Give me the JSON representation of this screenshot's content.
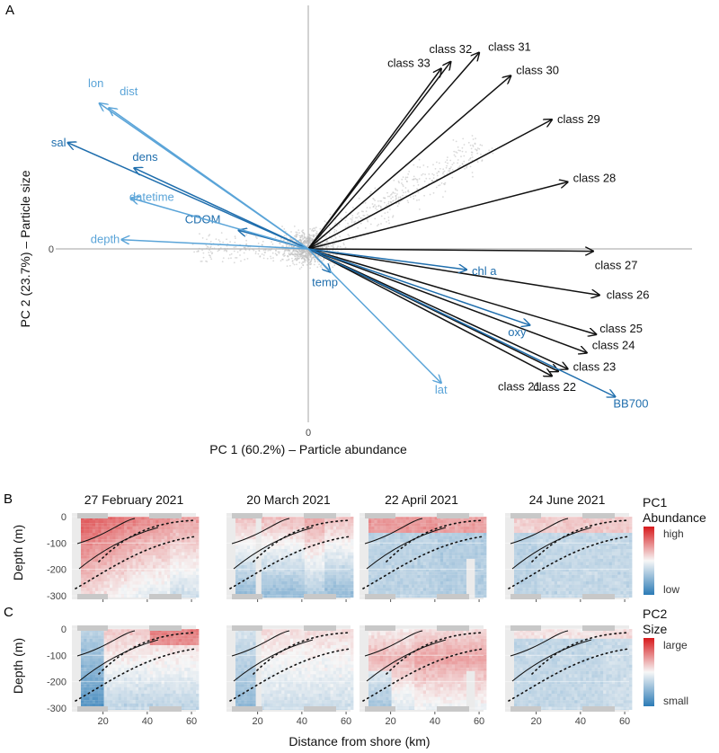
{
  "figure": {
    "panel_labels": [
      "A",
      "B",
      "C"
    ]
  },
  "chart_data": [
    {
      "type": "scatter",
      "subtype": "pca-biplot",
      "panel": "A",
      "xlabel": "PC 1 (60.2%) – Particle abundance",
      "ylabel": "PC 2 (23.7%) – Particle size",
      "xlim": [
        -1.0,
        1.0
      ],
      "ylim": [
        -0.75,
        0.93
      ],
      "x_ticks": [
        "0"
      ],
      "y_ticks": [
        "0"
      ],
      "colors": {
        "class": "#111111",
        "env_dark": "#1f6ead",
        "env_light": "#5aa4d8",
        "points": "#bbbbbb",
        "axis": "#b5b5b5"
      },
      "loadings": [
        {
          "label": "class 32",
          "x": 0.45,
          "y": 0.81,
          "group": "class"
        },
        {
          "label": "class 31",
          "x": 0.54,
          "y": 0.85,
          "group": "class"
        },
        {
          "label": "class 33",
          "x": 0.42,
          "y": 0.78,
          "group": "class"
        },
        {
          "label": "class 30",
          "x": 0.64,
          "y": 0.75,
          "group": "class"
        },
        {
          "label": "class 29",
          "x": 0.77,
          "y": 0.56,
          "group": "class"
        },
        {
          "label": "class 28",
          "x": 0.82,
          "y": 0.29,
          "group": "class"
        },
        {
          "label": "class 27",
          "x": 0.9,
          "y": -0.01,
          "group": "class"
        },
        {
          "label": "class 26",
          "x": 0.92,
          "y": -0.2,
          "group": "class"
        },
        {
          "label": "class 25",
          "x": 0.91,
          "y": -0.37,
          "group": "class"
        },
        {
          "label": "class 24",
          "x": 0.88,
          "y": -0.45,
          "group": "class"
        },
        {
          "label": "class 23",
          "x": 0.82,
          "y": -0.52,
          "group": "class"
        },
        {
          "label": "class 22",
          "x": 0.79,
          "y": -0.53,
          "group": "class"
        },
        {
          "label": "class 21",
          "x": 0.77,
          "y": -0.55,
          "group": "class"
        },
        {
          "label": "BB700",
          "x": 0.97,
          "y": -0.64,
          "group": "env_dark"
        },
        {
          "label": "oxy",
          "x": 0.7,
          "y": -0.33,
          "group": "env_dark"
        },
        {
          "label": "chl a",
          "x": 0.5,
          "y": -0.09,
          "group": "env_dark"
        },
        {
          "label": "temp",
          "x": 0.07,
          "y": -0.1,
          "group": "env_dark"
        },
        {
          "label": "CDOM",
          "x": -0.22,
          "y": 0.08,
          "group": "env_dark"
        },
        {
          "label": "dens",
          "x": -0.55,
          "y": 0.35,
          "group": "env_dark"
        },
        {
          "label": "sal",
          "x": -0.76,
          "y": 0.46,
          "group": "env_dark"
        },
        {
          "label": "lon",
          "x": -0.66,
          "y": 0.63,
          "group": "env_light"
        },
        {
          "label": "dist",
          "x": -0.63,
          "y": 0.61,
          "group": "env_light"
        },
        {
          "label": "datetime",
          "x": -0.56,
          "y": 0.22,
          "group": "env_light"
        },
        {
          "label": "depth",
          "x": -0.59,
          "y": 0.04,
          "group": "env_light"
        },
        {
          "label": "lat",
          "x": 0.42,
          "y": -0.58,
          "group": "env_light"
        }
      ]
    },
    {
      "type": "heatmap",
      "panel": "B",
      "facets": [
        "27 February 2021",
        "20 March 2021",
        "22 April 2021",
        "24 June 2021"
      ],
      "xlabel": "Distance from shore (km)",
      "ylabel": "Depth (m)",
      "y_ticks": [
        "0",
        "-100",
        "-200",
        "-300"
      ],
      "x_ticks": [
        "20",
        "40",
        "60"
      ],
      "legend": {
        "title": "PC1",
        "subtitle": "Abundance",
        "high": "high",
        "low": "low"
      },
      "colors": {
        "high": "#d7191c",
        "mid": "#f7f7f7",
        "low": "#2c7bb6"
      }
    },
    {
      "type": "heatmap",
      "panel": "C",
      "facets": [
        "27 February 2021",
        "20 March 2021",
        "22 April 2021",
        "24 June 2021"
      ],
      "xlabel": "Distance from shore (km)",
      "ylabel": "Depth (m)",
      "y_ticks": [
        "0",
        "-100",
        "-200",
        "-300"
      ],
      "x_ticks": [
        "20",
        "40",
        "60"
      ],
      "legend": {
        "title": "PC2",
        "subtitle": "Size",
        "high": "large",
        "low": "small"
      },
      "colors": {
        "high": "#d7191c",
        "mid": "#f7f7f7",
        "low": "#2c7bb6"
      }
    }
  ]
}
